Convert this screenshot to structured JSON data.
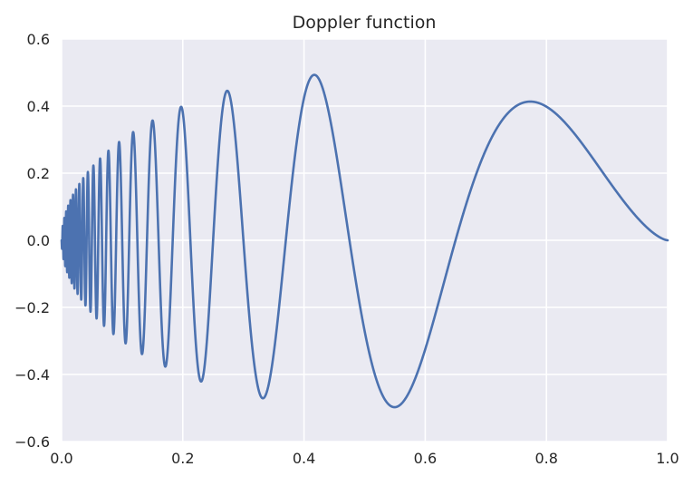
{
  "chart_data": {
    "type": "line",
    "title": "Doppler function",
    "xlabel": "",
    "ylabel": "",
    "xlim": [
      0.0,
      1.0
    ],
    "ylim": [
      -0.6,
      0.6
    ],
    "x_ticks": [
      0.0,
      0.2,
      0.4,
      0.6,
      0.8,
      1.0
    ],
    "x_tick_labels": [
      "0.0",
      "0.2",
      "0.4",
      "0.6",
      "0.8",
      "1.0"
    ],
    "y_ticks": [
      -0.6,
      -0.4,
      -0.2,
      0.0,
      0.2,
      0.4,
      0.6
    ],
    "y_tick_labels": [
      "−0.6",
      "−0.4",
      "−0.2",
      "0.0",
      "0.2",
      "0.4",
      "0.6"
    ],
    "grid": true,
    "legend": "none",
    "colors": {
      "background": "#eaeaf2",
      "grid": "#ffffff",
      "series": "#4c72b0",
      "text": "#262626"
    },
    "series": [
      {
        "function": "sqrt(x*(1-x))*sin(2.1*pi/(x+0.05))",
        "x": [
          0.0,
          0.05,
          0.1,
          0.15,
          0.172,
          0.2,
          0.23,
          0.275,
          0.33,
          0.4,
          0.42,
          0.5,
          0.55,
          0.6,
          0.7,
          0.775,
          0.8,
          0.9,
          1.0
        ],
        "y": [
          0.0,
          -0.22,
          0.0,
          0.356,
          -0.37,
          0.39,
          -0.42,
          0.445,
          -0.47,
          0.46,
          0.492,
          -0.4,
          -0.497,
          -0.36,
          0.26,
          0.414,
          0.4,
          0.2,
          0.0
        ]
      }
    ]
  }
}
